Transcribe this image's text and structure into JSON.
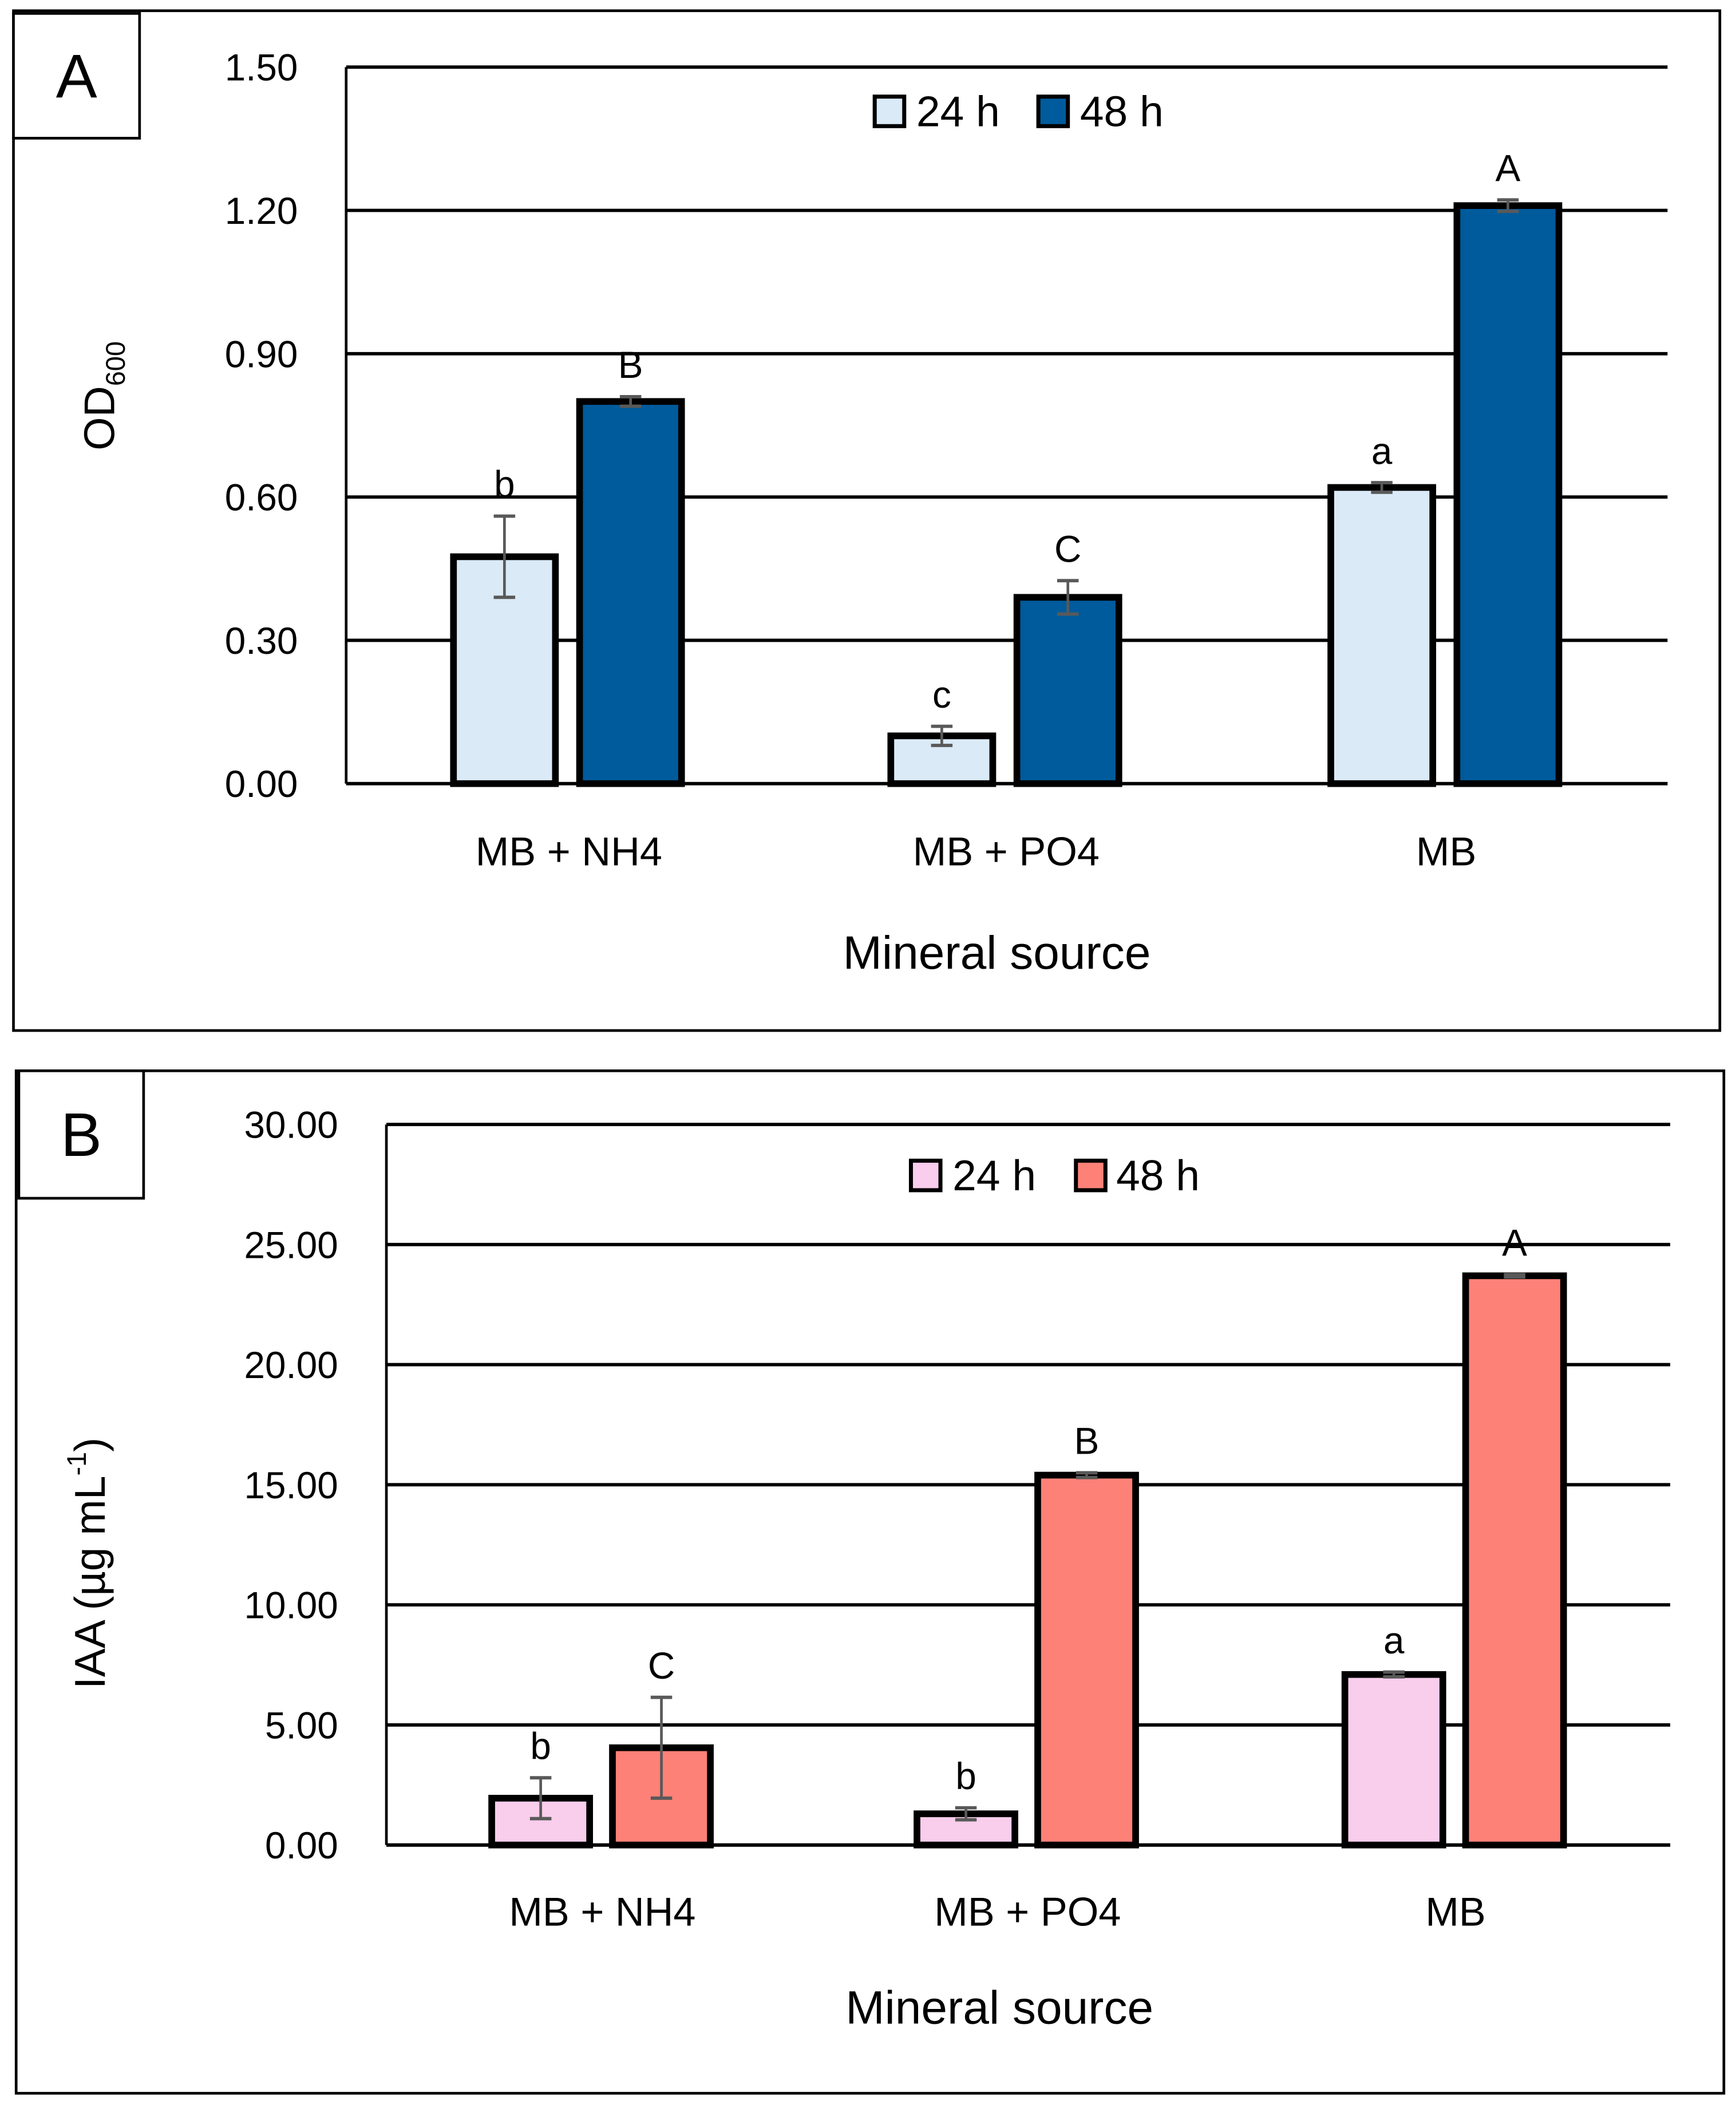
{
  "chart_data": [
    {
      "panel_label": "A",
      "type": "bar",
      "xlabel": "Mineral source",
      "ylabel": "OD",
      "ylabel_subscript": "600",
      "ylim": [
        0,
        1.5
      ],
      "yticks": [
        "0.00",
        "0.30",
        "0.60",
        "0.90",
        "1.20",
        "1.50"
      ],
      "grid": true,
      "legend_position": "top-center",
      "categories": [
        "MB + NH4",
        "MB + PO4",
        "MB"
      ],
      "series": [
        {
          "name": "24 h",
          "color": "#daeaf7",
          "values": [
            0.475,
            0.1,
            0.62
          ],
          "errors": [
            0.085,
            0.02,
            0.01
          ],
          "letters": [
            "b",
            "c",
            "a"
          ]
        },
        {
          "name": "48 h",
          "color": "#005b9c",
          "values": [
            0.8,
            0.39,
            1.21
          ],
          "errors": [
            0.01,
            0.035,
            0.012
          ],
          "letters": [
            "B",
            "C",
            "A"
          ]
        }
      ]
    },
    {
      "panel_label": "B",
      "type": "bar",
      "xlabel": "Mineral source",
      "ylabel": "IAA (µg mL",
      "ylabel_superscript": "-1",
      "ylabel_suffix": ")",
      "ylim": [
        0,
        30
      ],
      "yticks": [
        "0.00",
        "5.00",
        "10.00",
        "15.00",
        "20.00",
        "25.00",
        "30.00"
      ],
      "grid": true,
      "legend_position": "top-center",
      "categories": [
        "MB + NH4",
        "MB + PO4",
        "MB"
      ],
      "series": [
        {
          "name": "24 h",
          "color": "#f9cdec",
          "values": [
            1.95,
            1.3,
            7.1
          ],
          "errors": [
            0.85,
            0.25,
            0.1
          ],
          "letters": [
            "b",
            "b",
            "a"
          ]
        },
        {
          "name": "48 h",
          "color": "#fe8178",
          "values": [
            4.05,
            15.4,
            23.7
          ],
          "errors": [
            2.1,
            0.1,
            0.05
          ],
          "letters": [
            "C",
            "B",
            "A"
          ]
        }
      ]
    }
  ]
}
